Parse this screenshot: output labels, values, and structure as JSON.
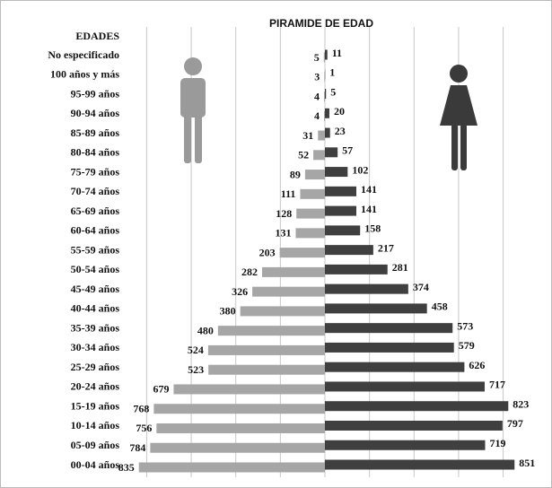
{
  "chart_data": {
    "type": "pyramid",
    "title": "PIRAMIDE DE EDAD",
    "y_label": "EDADES",
    "categories": [
      "No especificado",
      "100 años y más",
      "95-99 años",
      "90-94 años",
      "85-89 años",
      "80-84 años",
      "75-79 años",
      "70-74 años",
      "65-69 años",
      "60-64 años",
      "55-59 años",
      "50-54 años",
      "45-49 años",
      "40-44 años",
      "35-39 años",
      "30-34 años",
      "25-29 años",
      "20-24 años",
      "15-19 años",
      "10-14 años",
      "05-09 años",
      "00-04 años"
    ],
    "series": [
      {
        "color": "#a6a6a6",
        "side": "left",
        "values": [
          5,
          3,
          4,
          4,
          31,
          52,
          89,
          111,
          128,
          131,
          203,
          282,
          326,
          380,
          480,
          524,
          523,
          679,
          768,
          756,
          784,
          835
        ]
      },
      {
        "color": "#3f3f3f",
        "side": "right",
        "values": [
          11,
          1,
          5,
          20,
          23,
          57,
          102,
          141,
          141,
          158,
          217,
          281,
          374,
          458,
          573,
          579,
          626,
          717,
          823,
          797,
          719,
          851
        ]
      }
    ],
    "xlim": [
      -850,
      850
    ],
    "xticks": [
      -800,
      -600,
      -400,
      -200,
      0,
      200,
      400,
      600,
      800
    ],
    "grid": true
  }
}
